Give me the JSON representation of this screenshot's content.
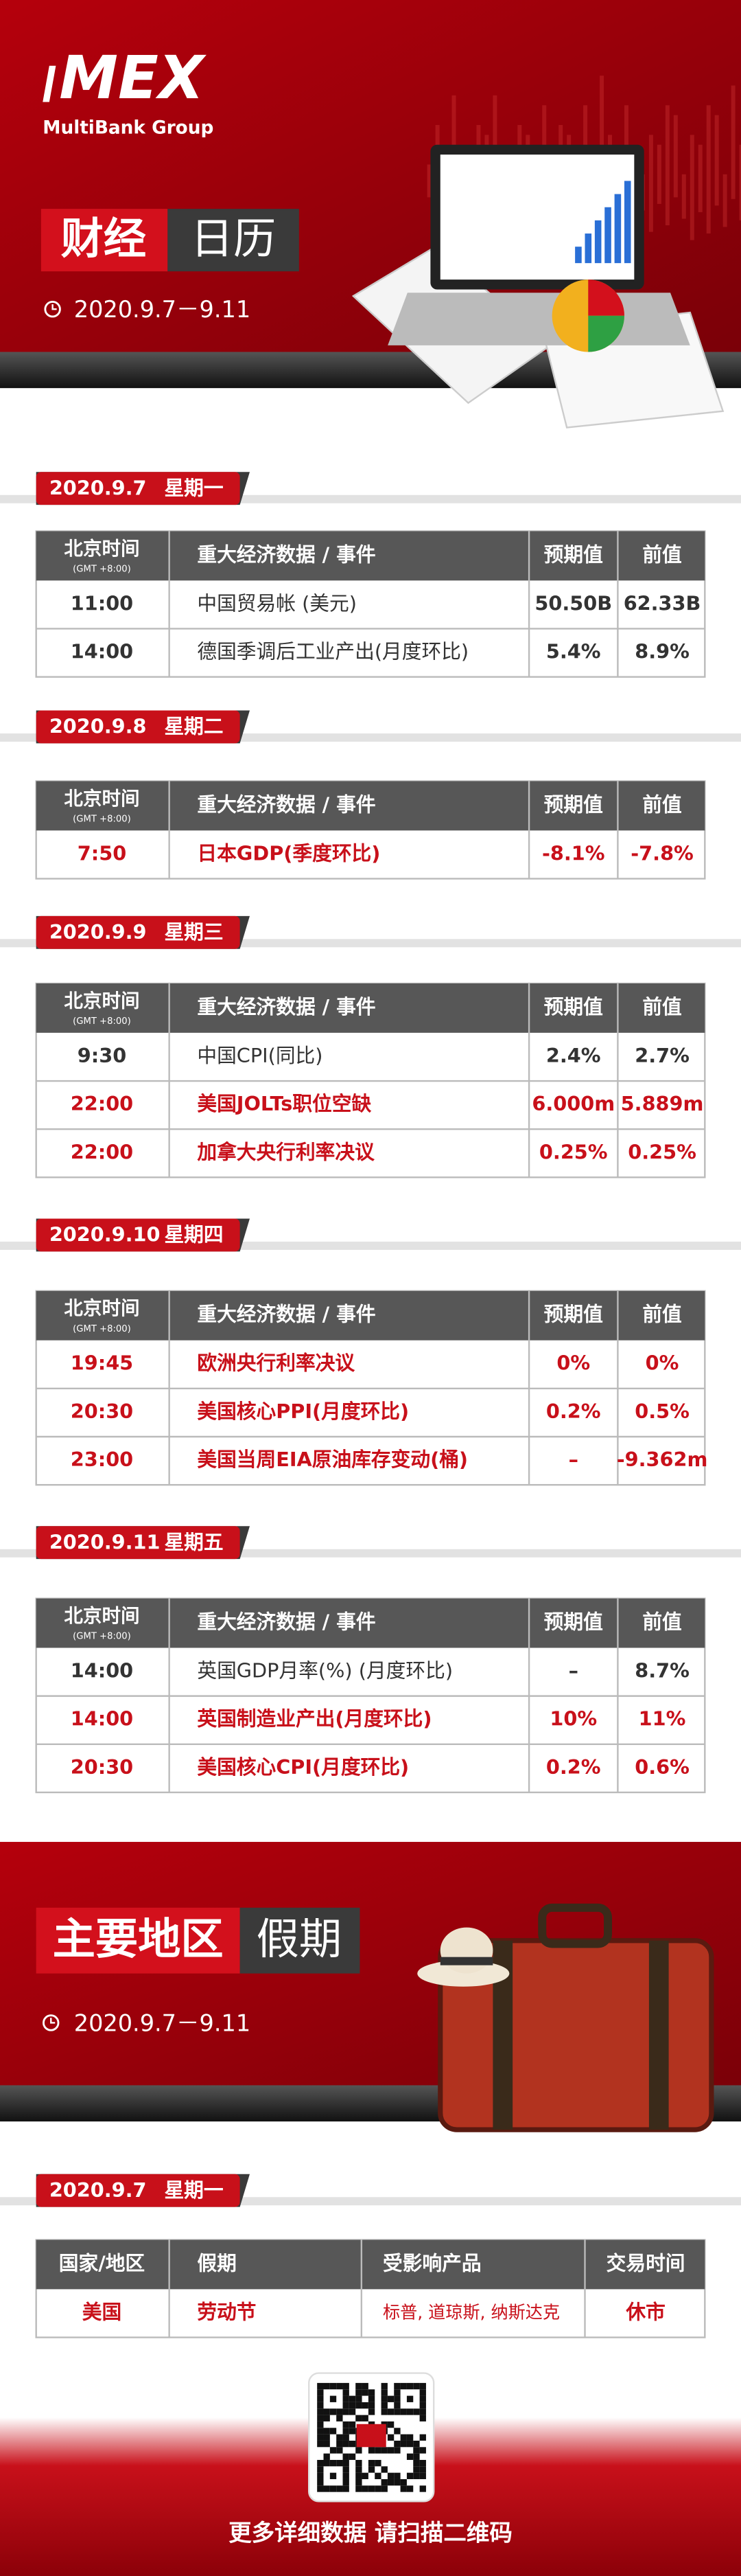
{
  "header": {
    "logo": "MEX",
    "brand": "MultiBank Group",
    "title_a": "财经",
    "title_b": "日历",
    "date": "2020.9.7－9.11"
  },
  "table_header": {
    "time": "北京时间",
    "tz": "(GMT +8:00)",
    "event": "重大经济数据 / 事件",
    "forecast": "预期值",
    "previous": "前值"
  },
  "days": [
    {
      "date": "2020.9.7",
      "weekday": "星期一",
      "rows": [
        {
          "time": "11:00",
          "event": "中国贸易帐 (美元)",
          "forecast": "50.50B",
          "previous": "62.33B",
          "color": "#333333"
        },
        {
          "time": "14:00",
          "event": "德国季调后工业产出(月度环比)",
          "forecast": "5.4%",
          "previous": "8.9%",
          "color": "#333333"
        }
      ]
    },
    {
      "date": "2020.9.8",
      "weekday": "星期二",
      "rows": [
        {
          "time": "7:50",
          "event": "日本GDP(季度环比)",
          "forecast": "-8.1%",
          "previous": "-7.8%",
          "color": "#c8101a"
        }
      ]
    },
    {
      "date": "2020.9.9",
      "weekday": "星期三",
      "rows": [
        {
          "time": "9:30",
          "event": "中国CPI(同比)",
          "forecast": "2.4%",
          "previous": "2.7%",
          "color": "#333333"
        },
        {
          "time": "22:00",
          "event": "美国JOLTs职位空缺",
          "forecast": "6.000m",
          "previous": "5.889m",
          "color": "#c8101a"
        },
        {
          "time": "22:00",
          "event": "加拿大央行利率决议",
          "forecast": "0.25%",
          "previous": "0.25%",
          "color": "#c8101a"
        }
      ]
    },
    {
      "date": "2020.9.10",
      "weekday": "星期四",
      "rows": [
        {
          "time": "19:45",
          "event": "欧洲央行利率决议",
          "forecast": "0%",
          "previous": "0%",
          "color": "#c8101a"
        },
        {
          "time": "20:30",
          "event": "美国核心PPI(月度环比)",
          "forecast": "0.2%",
          "previous": "0.5%",
          "color": "#c8101a"
        },
        {
          "time": "23:00",
          "event": "美国当周EIA原油库存变动(桶)",
          "forecast": "–",
          "previous": "-9.362m",
          "color": "#c8101a"
        }
      ]
    },
    {
      "date": "2020.9.11",
      "weekday": "星期五",
      "rows": [
        {
          "time": "14:00",
          "event": "英国GDP月率(%) (月度环比)",
          "forecast": "–",
          "previous": "8.7%",
          "color": "#333333"
        },
        {
          "time": "14:00",
          "event": "英国制造业产出(月度环比)",
          "forecast": "10%",
          "previous": "11%",
          "color": "#c8101a"
        },
        {
          "time": "20:30",
          "event": "美国核心CPI(月度环比)",
          "forecast": "0.2%",
          "previous": "0.6%",
          "color": "#c8101a"
        }
      ]
    }
  ],
  "holidays": {
    "title_a": "主要地区",
    "title_b": "假期",
    "date": "2020.9.7－9.11",
    "day": {
      "date": "2020.9.7",
      "weekday": "星期一"
    },
    "columns": [
      "国家/地区",
      "假期",
      "受影响产品",
      "交易时间"
    ],
    "rows": [
      {
        "region": "美国",
        "holiday": "劳动节",
        "products": "标普, 道琼斯, 纳斯达克",
        "hours": "休市",
        "color": "#c8101a"
      }
    ]
  },
  "footer": {
    "text": "更多详细数据 请扫描二维码"
  }
}
